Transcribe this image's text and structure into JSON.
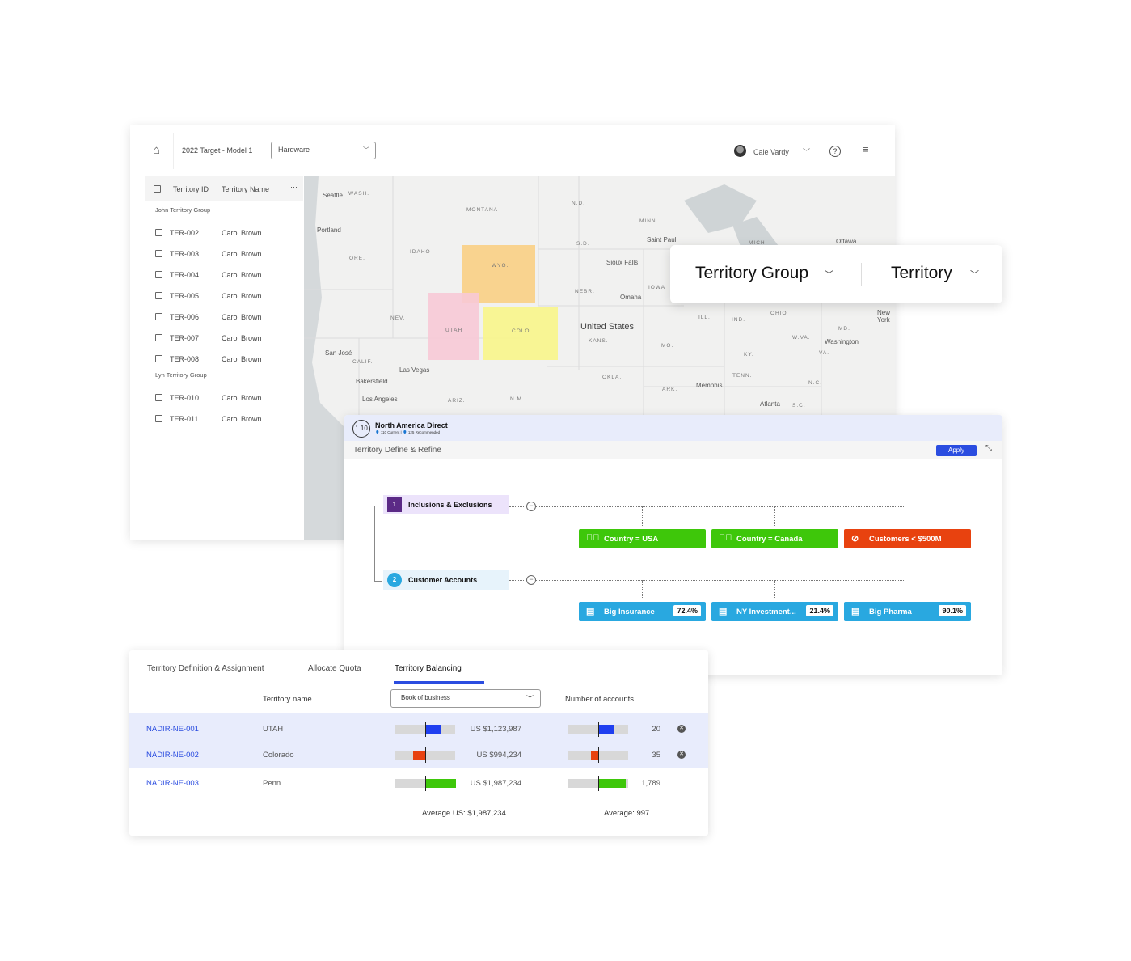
{
  "header": {
    "model": "2022 Target - Model 1",
    "dropdown": "Hardware",
    "user": "Cale Vardy",
    "icons": [
      "home-icon",
      "chevron-down-icon",
      "help-icon",
      "menu-icon"
    ]
  },
  "list": {
    "columns": [
      "Territory ID",
      "Territory Name"
    ],
    "more": "···",
    "groups": [
      {
        "name": "John Territory Group",
        "rows": [
          [
            "TER-002",
            "Carol Brown"
          ],
          [
            "TER-003",
            "Carol Brown"
          ],
          [
            "TER-004",
            "Carol Brown"
          ],
          [
            "TER-005",
            "Carol Brown"
          ],
          [
            "TER-006",
            "Carol Brown"
          ],
          [
            "TER-007",
            "Carol Brown"
          ],
          [
            "TER-008",
            "Carol Brown"
          ]
        ]
      },
      {
        "name": "Lyn Territory Group",
        "rows": [
          [
            "TER-010",
            "Carol Brown"
          ],
          [
            "TER-011",
            "Carol Brown"
          ]
        ]
      }
    ]
  },
  "map": {
    "states": [
      "WASH.",
      "MONTANA",
      "N.D.",
      "MINN.",
      "ORE.",
      "IDAHO",
      "S.D.",
      "WYO.",
      "IOWA",
      "NEBR.",
      "NEV.",
      "UTAH",
      "COLO.",
      "KANS.",
      "OHIO",
      "ILL.",
      "IND.",
      "MD.",
      "W.VA.",
      "MO.",
      "VA.",
      "KY.",
      "CALIF.",
      "TENN.",
      "OKLA.",
      "N.C.",
      "ARK.",
      "ARIZ.",
      "N.M.",
      "S.C.",
      "MICH"
    ],
    "cities": [
      "Seattle",
      "Portland",
      "Saint Paul",
      "Ottawa",
      "Sioux Falls",
      "Omaha",
      "New York",
      "Washington",
      "San José",
      "Las Vegas",
      "Memphis",
      "Bakersfield",
      "Los Angeles",
      "Atlanta"
    ],
    "country": "United States",
    "highlight_colors": {
      "WYO.": "#f9cf84",
      "UTAH": "#f7c9d6",
      "COLO.": "#f8f58a"
    }
  },
  "selector": {
    "level1": "Territory Group",
    "level2": "Territory"
  },
  "flow": {
    "badge": "1.10",
    "title": "North America Direct",
    "current": "110 Current",
    "recommended": "125 Recommended",
    "subtitle": "Territory Define & Refine",
    "apply": "Apply",
    "steps": [
      {
        "num": "1",
        "label": "Inclusions & Exclusions",
        "color": "#5b2a86",
        "bg": "#ece3fb"
      },
      {
        "num": "2",
        "label": "Customer Accounts",
        "color": "#29a8e0",
        "bg": "#e7f3fb"
      }
    ],
    "rules": [
      {
        "label": "Country = USA",
        "type": "include",
        "color": "#3ec70a"
      },
      {
        "label": "Country = Canada",
        "type": "include",
        "color": "#3ec70a"
      },
      {
        "label": "Customers < $500M",
        "type": "exclude",
        "color": "#e8420f"
      }
    ],
    "accounts": [
      {
        "label": "Big Insurance",
        "pct": "72.4%"
      },
      {
        "label": "NY Investment...",
        "pct": "21.4%"
      },
      {
        "label": "Big Pharma",
        "pct": "90.1%"
      }
    ],
    "account_color": "#29a8e0"
  },
  "balance": {
    "tabs": [
      "Territory Definition & Assignment",
      "Allocate Quota",
      "Territory Balancing"
    ],
    "active_tab": "Territory Balancing",
    "col_name": "Territory name",
    "metric": "Book of business",
    "col_accounts": "Number of accounts",
    "rows": [
      {
        "id": "NADIR-NE-001",
        "name": "UTAH",
        "value": "US $1,123,987",
        "value_delta": 0.27,
        "accounts": "20",
        "acc_delta": 0.27,
        "color": "#1f3ff0",
        "removable": true
      },
      {
        "id": "NADIR-NE-002",
        "name": "Colorado",
        "value": "US $994,234",
        "value_delta": -0.2,
        "accounts": "35",
        "acc_delta": -0.12,
        "color": "#e8420f",
        "removable": true
      },
      {
        "id": "NADIR-NE-003",
        "name": "Penn",
        "value": "US $1,987,234",
        "value_delta": 0.5,
        "accounts": "1,789",
        "acc_delta": 0.45,
        "color": "#3ec70a",
        "removable": false
      }
    ],
    "avg_value": "Average US: $1,987,234",
    "avg_accounts": "Average: 997"
  }
}
